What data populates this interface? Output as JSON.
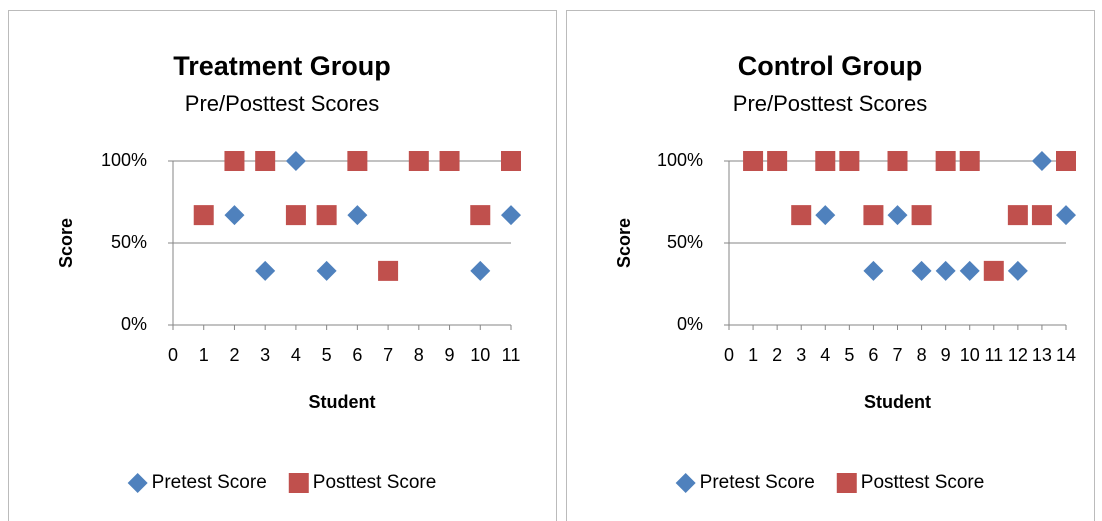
{
  "chart_data": [
    {
      "type": "scatter",
      "title": "Treatment Group",
      "subtitle": "Pre/Posttest Scores",
      "x_label": "Student",
      "y_label": "Score",
      "xlim": [
        0,
        11
      ],
      "xticks": [
        0,
        1,
        2,
        3,
        4,
        5,
        6,
        7,
        8,
        9,
        10,
        11
      ],
      "ylim": [
        0,
        100
      ],
      "yticks": [
        {
          "value": 0,
          "label": "0%"
        },
        {
          "value": 50,
          "label": "50%"
        },
        {
          "value": 100,
          "label": "100%"
        }
      ],
      "grid": true,
      "legend": "bottom",
      "series": [
        {
          "name": "Pretest Score",
          "color": "#4f81bd",
          "marker": "diamond",
          "x": [
            2,
            3,
            4,
            5,
            6,
            10,
            11
          ],
          "values": [
            67,
            33,
            100,
            33,
            67,
            33,
            67
          ]
        },
        {
          "name": "Posttest Score",
          "color": "#c0504d",
          "marker": "square",
          "x": [
            1,
            2,
            3,
            4,
            5,
            6,
            7,
            8,
            9,
            10,
            11
          ],
          "values": [
            67,
            100,
            100,
            67,
            67,
            100,
            33,
            100,
            100,
            67,
            100
          ]
        }
      ]
    },
    {
      "type": "scatter",
      "title": "Control Group",
      "subtitle": "Pre/Posttest Scores",
      "x_label": "Student",
      "y_label": "Score",
      "xlim": [
        0,
        14
      ],
      "xticks": [
        0,
        1,
        2,
        3,
        4,
        5,
        6,
        7,
        8,
        9,
        10,
        11,
        12,
        13,
        14
      ],
      "ylim": [
        0,
        100
      ],
      "yticks": [
        {
          "value": 0,
          "label": "0%"
        },
        {
          "value": 50,
          "label": "50%"
        },
        {
          "value": 100,
          "label": "100%"
        }
      ],
      "grid": true,
      "legend": "bottom",
      "series": [
        {
          "name": "Pretest Score",
          "color": "#4f81bd",
          "marker": "diamond",
          "x": [
            4,
            6,
            7,
            8,
            9,
            10,
            12,
            13,
            14
          ],
          "values": [
            67,
            33,
            67,
            33,
            33,
            33,
            33,
            100,
            67
          ]
        },
        {
          "name": "Posttest Score",
          "color": "#c0504d",
          "marker": "square",
          "x": [
            1,
            2,
            3,
            4,
            5,
            6,
            7,
            8,
            9,
            10,
            11,
            12,
            13,
            14
          ],
          "values": [
            100,
            100,
            67,
            100,
            100,
            67,
            100,
            67,
            100,
            100,
            33,
            67,
            67,
            100
          ]
        }
      ]
    }
  ]
}
